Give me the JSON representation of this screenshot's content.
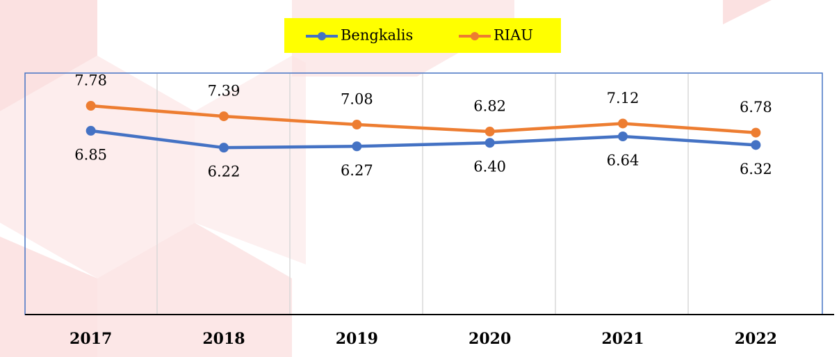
{
  "chart_data": {
    "type": "line",
    "categories": [
      "2017",
      "2018",
      "2019",
      "2020",
      "2021",
      "2022"
    ],
    "series": [
      {
        "name": "Bengkalis",
        "color": "#4472c4",
        "values": [
          6.85,
          6.22,
          6.27,
          6.4,
          6.64,
          6.32
        ],
        "value_labels": [
          "6.85",
          "6.22",
          "6.27",
          "6.40",
          "6.64",
          "6.32"
        ]
      },
      {
        "name": "RIAU",
        "color": "#ed7d31",
        "values": [
          7.78,
          7.39,
          7.08,
          6.82,
          7.12,
          6.78
        ],
        "value_labels": [
          "7.78",
          "7.39",
          "7.08",
          "6.82",
          "7.12",
          "6.78"
        ]
      }
    ],
    "ylim": [
      0,
      9
    ]
  }
}
